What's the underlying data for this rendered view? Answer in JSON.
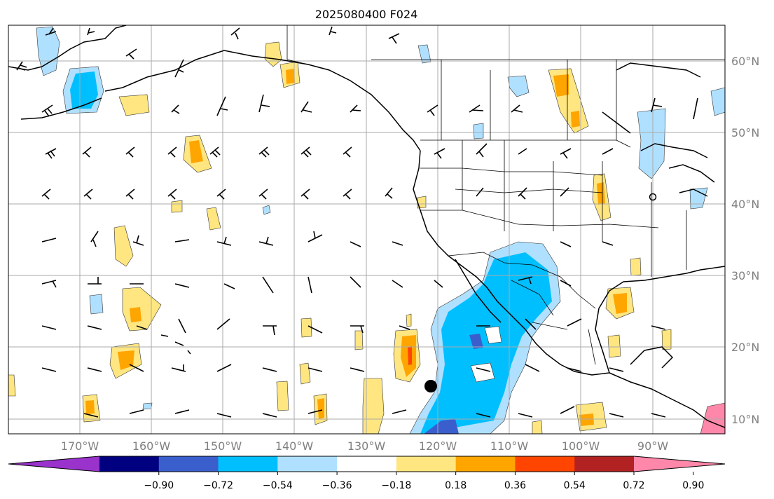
{
  "title": "2025080400 F024",
  "lon_labels": [
    "170°W",
    "160°W",
    "150°W",
    "140°W",
    "130°W",
    "120°W",
    "110°W",
    "100°W",
    "90°W"
  ],
  "lat_labels": [
    "60°N",
    "50°N",
    "40°N",
    "30°N",
    "20°N",
    "10°N"
  ],
  "colorbar": {
    "ticks": [
      "−0.90",
      "−0.72",
      "−0.54",
      "−0.36",
      "−0.18",
      "0.18",
      "0.36",
      "0.54",
      "0.72",
      "0.90"
    ],
    "colors": [
      "#9933cc",
      "#000080",
      "#3a5fcd",
      "#00bfff",
      "#b0e0ff",
      "#ffffff",
      "#ffe680",
      "#ffa500",
      "#ff4500",
      "#b22222",
      "#ff88aa"
    ]
  },
  "colors": {
    "label_gray": "#808080",
    "grid": "#aaaaaa",
    "coast": "#000000"
  }
}
